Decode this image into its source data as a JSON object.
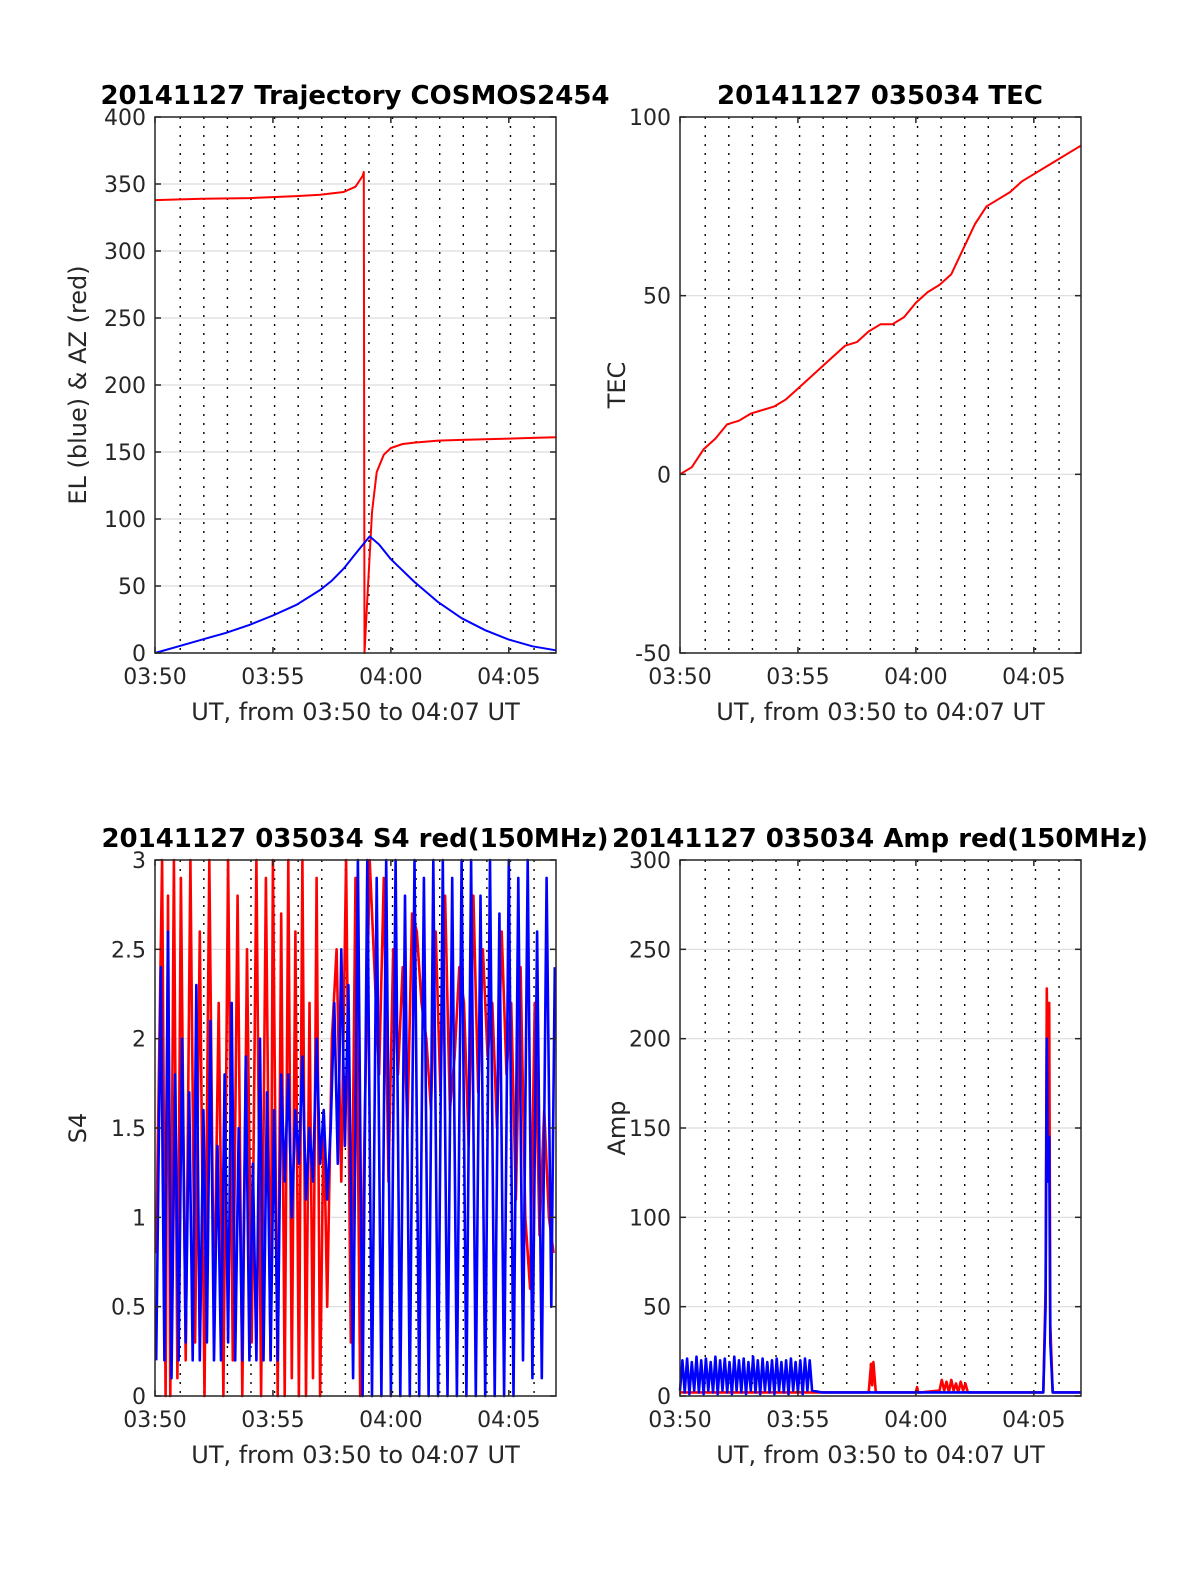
{
  "colors": {
    "red": "#ff0000",
    "blue": "#0000ff"
  },
  "chart_data": [
    {
      "id": "trajectory",
      "type": "line",
      "title": "20141127 Trajectory COSMOS2454",
      "xlabel": "UT, from 03:50 to 04:07 UT",
      "ylabel": "EL (blue) & AZ (red)",
      "xlim": [
        0,
        17
      ],
      "xticks": [
        0,
        5,
        10,
        15
      ],
      "xticklabels": [
        "03:50",
        "03:55",
        "04:00",
        "04:05"
      ],
      "ylim": [
        0,
        400
      ],
      "yticks": [
        0,
        50,
        100,
        150,
        200,
        250,
        300,
        350,
        400
      ],
      "yticklabels": [
        "0",
        "50",
        "100",
        "150",
        "200",
        "250",
        "300",
        "350",
        "400"
      ],
      "vgrid_minutes": [
        1.07,
        2.07,
        3.07,
        4.07,
        5.07,
        6.07,
        7.07,
        8.07,
        9.07,
        10.07,
        11.07,
        12.07,
        13.07,
        14.07,
        15.07,
        16.07
      ],
      "series": [
        {
          "color": "red",
          "x": [
            0,
            2,
            4,
            6,
            7,
            8,
            8.5,
            8.8,
            8.85,
            8.88,
            9.0,
            9.2,
            9.4,
            9.7,
            10.0,
            10.5,
            11,
            12,
            13,
            14,
            15,
            16,
            17
          ],
          "y": [
            338,
            339,
            339.5,
            341,
            342,
            344,
            348,
            356,
            359,
            0,
            40,
            105,
            135,
            148,
            153,
            156,
            157,
            158.5,
            159,
            159.5,
            160,
            160.5,
            161
          ]
        },
        {
          "color": "blue",
          "x": [
            0,
            1,
            2,
            3,
            4,
            5,
            6,
            7,
            7.5,
            8,
            8.5,
            9.1,
            9.5,
            10,
            11,
            12,
            13,
            14,
            15,
            16,
            17
          ],
          "y": [
            0,
            5,
            10,
            15,
            21,
            28,
            36,
            47,
            54,
            63,
            74,
            87,
            81,
            70,
            53,
            38,
            26,
            17,
            10,
            5,
            2
          ]
        }
      ]
    },
    {
      "id": "tec",
      "type": "line",
      "title": "20141127 035034 TEC",
      "xlabel": "UT, from 03:50 to 04:07 UT",
      "ylabel": "TEC",
      "xlim": [
        0,
        17
      ],
      "xticks": [
        0,
        5,
        10,
        15
      ],
      "xticklabels": [
        "03:50",
        "03:55",
        "04:00",
        "04:05"
      ],
      "ylim": [
        -50,
        100
      ],
      "yticks": [
        -50,
        0,
        50,
        100
      ],
      "yticklabels": [
        "-50",
        "0",
        "50",
        "100"
      ],
      "vgrid_minutes": [
        1.07,
        2.07,
        3.07,
        4.07,
        5.07,
        6.07,
        7.07,
        8.07,
        9.07,
        10.07,
        11.07,
        12.07,
        13.07,
        14.07,
        15.07,
        16.07
      ],
      "series": [
        {
          "color": "red",
          "x": [
            0,
            0.5,
            1,
            1.5,
            2,
            2.5,
            3,
            3.5,
            4,
            4.5,
            5,
            5.5,
            6,
            6.5,
            7,
            7.5,
            8,
            8.5,
            9,
            9.5,
            10,
            10.5,
            11,
            11.5,
            12,
            12.5,
            13,
            13.5,
            14,
            14.5,
            15,
            15.5,
            16,
            16.5,
            17
          ],
          "y": [
            0,
            2,
            7,
            10,
            14,
            15,
            17,
            18,
            19,
            21,
            24,
            27,
            30,
            33,
            36,
            37,
            40,
            42,
            42,
            44,
            48,
            51,
            53,
            56,
            63,
            70,
            75,
            77,
            79,
            82,
            84,
            86,
            88,
            90,
            92
          ]
        }
      ]
    },
    {
      "id": "s4",
      "type": "line",
      "title": "20141127 035034 S4 red(150MHz)",
      "xlabel": "UT, from 03:50 to 04:07 UT",
      "ylabel": "S4",
      "xlim": [
        0,
        17
      ],
      "xticks": [
        0,
        5,
        10,
        15
      ],
      "xticklabels": [
        "03:50",
        "03:55",
        "04:00",
        "04:05"
      ],
      "ylim": [
        0,
        3
      ],
      "yticks": [
        0,
        0.5,
        1,
        1.5,
        2,
        2.5,
        3
      ],
      "yticklabels": [
        "0",
        "0.5",
        "1",
        "1.5",
        "2",
        "2.5",
        "3"
      ],
      "vgrid_minutes": [
        1.07,
        2.07,
        3.07,
        4.07,
        5.07,
        6.07,
        7.07,
        8.07,
        9.07,
        10.07,
        11.07,
        12.07,
        13.07,
        14.07,
        15.07,
        16.07
      ],
      "series": [
        {
          "color": "red",
          "x": [
            0.05,
            0.3,
            0.45,
            0.55,
            0.65,
            0.8,
            0.95,
            1.1,
            1.3,
            1.5,
            1.7,
            1.9,
            2.1,
            2.3,
            2.5,
            2.7,
            2.9,
            3.1,
            3.3,
            3.5,
            3.7,
            3.9,
            4.1,
            4.3,
            4.5,
            4.7,
            4.9,
            5.0,
            5.2,
            5.35,
            5.5,
            5.65,
            5.8,
            5.95,
            6.1,
            6.25,
            6.4,
            6.55,
            6.7,
            6.85,
            7.0,
            7.15,
            7.3,
            7.5,
            7.7,
            7.9,
            8.1,
            8.3,
            8.5,
            8.7,
            8.9,
            9.1,
            9.3,
            9.5,
            9.7,
            9.9,
            10.1,
            10.3,
            10.5,
            10.7,
            10.9,
            11.1,
            11.3,
            11.5,
            11.7,
            11.9,
            12.1,
            12.3,
            12.5,
            12.7,
            12.9,
            13.1,
            13.3,
            13.5,
            13.7,
            13.9,
            14.1,
            14.3,
            14.5,
            14.7,
            14.9,
            15.1,
            15.3,
            15.5,
            15.7,
            15.9,
            16.1,
            16.3,
            16.5,
            16.7,
            16.9
          ],
          "y": [
            0.8,
            3.0,
            0.0,
            2.8,
            0.0,
            3.0,
            0.1,
            2.9,
            0.2,
            3.0,
            0.3,
            2.6,
            0.0,
            3.0,
            0.4,
            2.2,
            0.0,
            3.0,
            0.2,
            2.8,
            0.0,
            2.5,
            0.3,
            3.0,
            0.0,
            2.9,
            0.2,
            3.0,
            0.0,
            2.7,
            0.0,
            3.0,
            0.1,
            2.6,
            0.0,
            3.0,
            0.0,
            2.2,
            0.1,
            2.9,
            0.0,
            1.6,
            0.5,
            2.0,
            2.5,
            1.2,
            3.0,
            0.3,
            2.9,
            0.0,
            1.6,
            3.0,
            2.4,
            1.8,
            2.9,
            1.2,
            2.5,
            1.8,
            2.4,
            1.5,
            2.7,
            2.6,
            2.2,
            2.0,
            1.6,
            2.6,
            1.7,
            2.8,
            1.6,
            1.9,
            2.4,
            2.2,
            1.4,
            2.8,
            1.7,
            2.5,
            1.9,
            2.2,
            1.5,
            2.6,
            1.8,
            2.2,
            1.1,
            2.4,
            1.0,
            0.6,
            2.2,
            0.9,
            1.6,
            1.0,
            0.8
          ]
        },
        {
          "color": "blue",
          "x": [
            0.05,
            0.25,
            0.4,
            0.55,
            0.7,
            0.85,
            1.0,
            1.15,
            1.3,
            1.45,
            1.6,
            1.75,
            1.9,
            2.05,
            2.2,
            2.35,
            2.5,
            2.65,
            2.8,
            2.95,
            3.1,
            3.25,
            3.4,
            3.55,
            3.7,
            3.85,
            4.0,
            4.15,
            4.3,
            4.45,
            4.6,
            4.75,
            4.9,
            5.05,
            5.2,
            5.35,
            5.5,
            5.65,
            5.8,
            5.95,
            6.1,
            6.25,
            6.4,
            6.55,
            6.7,
            6.85,
            7.0,
            7.15,
            7.3,
            7.45,
            7.6,
            7.75,
            7.9,
            8.05,
            8.2,
            8.4,
            8.6,
            8.8,
            9.0,
            9.2,
            9.4,
            9.6,
            9.8,
            10.0,
            10.2,
            10.4,
            10.6,
            10.8,
            11.0,
            11.2,
            11.4,
            11.6,
            11.8,
            12.0,
            12.2,
            12.4,
            12.6,
            12.8,
            13.0,
            13.2,
            13.4,
            13.6,
            13.8,
            14.0,
            14.2,
            14.4,
            14.6,
            14.8,
            15.0,
            15.2,
            15.4,
            15.6,
            15.8,
            16.0,
            16.2,
            16.4,
            16.6,
            16.8,
            16.95
          ],
          "y": [
            0.2,
            2.4,
            0.2,
            2.6,
            0.1,
            1.8,
            0.2,
            2.0,
            0.3,
            1.7,
            0.2,
            2.3,
            0.2,
            1.6,
            0.3,
            2.1,
            0.2,
            1.4,
            0.2,
            1.8,
            0.3,
            2.2,
            0.2,
            1.5,
            0.2,
            1.9,
            0.2,
            1.3,
            0.2,
            2.0,
            0.2,
            1.7,
            0.2,
            1.6,
            0.2,
            1.8,
            1.2,
            1.8,
            1.0,
            1.6,
            1.3,
            1.9,
            1.1,
            1.5,
            1.2,
            2.0,
            1.3,
            1.6,
            1.1,
            1.5,
            2.2,
            1.3,
            2.5,
            1.4,
            2.3,
            0.1,
            3.0,
            0.0,
            3.0,
            0.0,
            2.9,
            0.0,
            3.0,
            0.0,
            3.0,
            0.0,
            2.8,
            0.0,
            3.0,
            0.0,
            2.9,
            0.0,
            3.0,
            0.0,
            3.0,
            0.0,
            2.9,
            0.0,
            3.0,
            0.0,
            3.0,
            0.0,
            2.8,
            0.0,
            3.0,
            0.0,
            2.7,
            0.0,
            3.0,
            0.0,
            2.9,
            0.2,
            3.0,
            0.1,
            2.6,
            0.1,
            2.9,
            0.5,
            2.4
          ]
        }
      ]
    },
    {
      "id": "amp",
      "type": "line",
      "title": "20141127 035034 Amp red(150MHz)",
      "xlabel": "UT, from 03:50 to 04:07 UT",
      "ylabel": "Amp",
      "xlim": [
        0,
        17
      ],
      "xticks": [
        0,
        5,
        10,
        15
      ],
      "xticklabels": [
        "03:50",
        "03:55",
        "04:00",
        "04:05"
      ],
      "ylim": [
        0,
        300
      ],
      "yticks": [
        0,
        50,
        100,
        150,
        200,
        250,
        300
      ],
      "yticklabels": [
        "0",
        "50",
        "100",
        "150",
        "200",
        "250",
        "300"
      ],
      "vgrid_minutes": [
        1.07,
        2.07,
        3.07,
        4.07,
        5.07,
        6.07,
        7.07,
        8.07,
        9.07,
        10.07,
        11.07,
        12.07,
        13.07,
        14.07,
        15.07,
        16.07
      ],
      "series": [
        {
          "color": "red",
          "x": [
            0,
            5.5,
            5.6,
            8.0,
            8.1,
            8.15,
            8.2,
            8.3,
            10.0,
            10.05,
            10.1,
            10.2,
            11.0,
            11.1,
            11.2,
            11.3,
            11.4,
            11.5,
            11.6,
            11.7,
            11.8,
            11.9,
            12.0,
            12.1,
            12.2,
            12.3,
            12.5,
            15.4,
            15.5,
            15.55,
            15.6,
            15.65,
            15.7,
            15.8,
            16.0,
            17.0
          ],
          "y": [
            2,
            2,
            2,
            2,
            18,
            6,
            19,
            2,
            2,
            5,
            2,
            2,
            3,
            9,
            3,
            8,
            2,
            9,
            3,
            7,
            2,
            8,
            3,
            7,
            2,
            2,
            2,
            2,
            60,
            228,
            150,
            220,
            40,
            2,
            2,
            2
          ]
        },
        {
          "color": "blue",
          "x": [
            0,
            0.1,
            0.2,
            0.3,
            0.4,
            0.5,
            0.6,
            0.7,
            0.8,
            0.9,
            1.0,
            1.1,
            1.2,
            1.3,
            1.4,
            1.5,
            1.6,
            1.7,
            1.8,
            1.9,
            2.0,
            2.1,
            2.2,
            2.3,
            2.4,
            2.5,
            2.6,
            2.7,
            2.8,
            2.9,
            3.0,
            3.1,
            3.2,
            3.3,
            3.4,
            3.5,
            3.6,
            3.7,
            3.8,
            3.9,
            4.0,
            4.1,
            4.2,
            4.3,
            4.4,
            4.5,
            4.6,
            4.7,
            4.8,
            4.9,
            5.0,
            5.1,
            5.2,
            5.3,
            5.4,
            5.5,
            5.6,
            6.0,
            7.0,
            8.0,
            9.0,
            10.0,
            11.0,
            12.0,
            13.0,
            14.0,
            15.0,
            15.4,
            15.5,
            15.55,
            15.6,
            15.65,
            15.7,
            15.8,
            16.0,
            17.0
          ],
          "y": [
            3,
            20,
            2,
            21,
            1,
            19,
            3,
            22,
            2,
            20,
            1,
            21,
            3,
            19,
            2,
            22,
            1,
            20,
            3,
            21,
            2,
            19,
            1,
            22,
            3,
            20,
            2,
            21,
            1,
            19,
            3,
            22,
            2,
            20,
            1,
            21,
            3,
            19,
            2,
            20,
            1,
            21,
            3,
            19,
            2,
            20,
            1,
            21,
            3,
            19,
            2,
            20,
            1,
            21,
            3,
            20,
            3,
            2,
            2,
            2,
            2,
            2,
            2,
            2,
            2,
            2,
            2,
            2,
            50,
            200,
            120,
            145,
            30,
            2,
            2,
            2
          ]
        }
      ]
    }
  ]
}
